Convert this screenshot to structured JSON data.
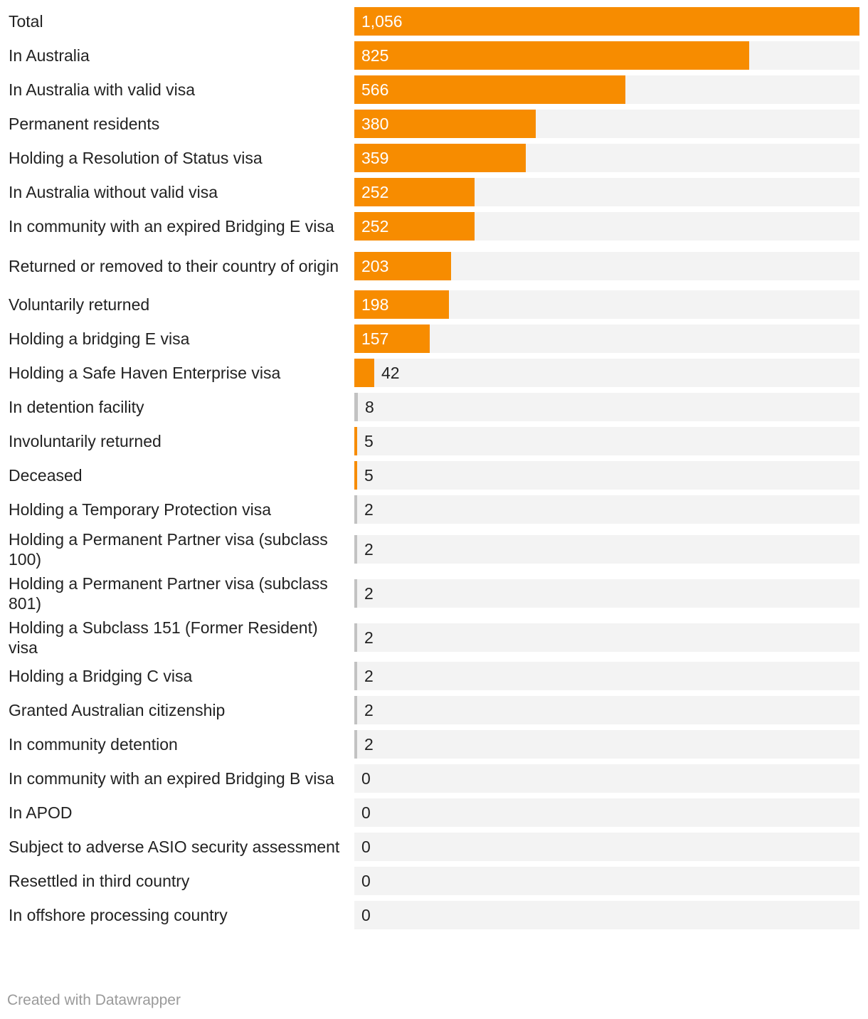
{
  "chart_data": {
    "type": "bar",
    "orientation": "horizontal",
    "max": 1056,
    "colors": {
      "primary": "#f78c00",
      "neutral": "#c2c2c2",
      "track": "#f3f3f3"
    },
    "rows": [
      {
        "label": "Total",
        "value": 1056,
        "display": "1,056",
        "color": "primary"
      },
      {
        "label": "In Australia",
        "value": 825,
        "display": "825",
        "color": "primary"
      },
      {
        "label": "In Australia with valid visa",
        "value": 566,
        "display": "566",
        "color": "primary"
      },
      {
        "label": "Permanent residents",
        "value": 380,
        "display": "380",
        "color": "primary"
      },
      {
        "label": "Holding a Resolution of Status visa",
        "value": 359,
        "display": "359",
        "color": "primary"
      },
      {
        "label": "In Australia without valid visa",
        "value": 252,
        "display": "252",
        "color": "primary"
      },
      {
        "label": "In community with an expired Bridging E visa",
        "value": 252,
        "display": "252",
        "color": "primary"
      },
      {
        "label": "Returned or removed to their country of origin",
        "value": 203,
        "display": "203",
        "color": "primary"
      },
      {
        "label": "Voluntarily returned",
        "value": 198,
        "display": "198",
        "color": "primary"
      },
      {
        "label": "Holding a bridging E visa",
        "value": 157,
        "display": "157",
        "color": "primary"
      },
      {
        "label": "Holding a Safe Haven Enterprise visa",
        "value": 42,
        "display": "42",
        "color": "primary"
      },
      {
        "label": "In detention facility",
        "value": 8,
        "display": "8",
        "color": "neutral"
      },
      {
        "label": "Involuntarily returned",
        "value": 5,
        "display": "5",
        "color": "primary"
      },
      {
        "label": "Deceased",
        "value": 5,
        "display": "5",
        "color": "primary"
      },
      {
        "label": "Holding a Temporary Protection visa",
        "value": 2,
        "display": "2",
        "color": "neutral"
      },
      {
        "label": "Holding a Permanent Partner visa (subclass 100)",
        "value": 2,
        "display": "2",
        "color": "neutral"
      },
      {
        "label": "Holding a Permanent Partner visa (subclass 801)",
        "value": 2,
        "display": "2",
        "color": "neutral"
      },
      {
        "label": "Holding a Subclass 151 (Former Resident) visa",
        "value": 2,
        "display": "2",
        "color": "neutral"
      },
      {
        "label": "Holding a Bridging C visa",
        "value": 2,
        "display": "2",
        "color": "neutral"
      },
      {
        "label": "Granted Australian citizenship",
        "value": 2,
        "display": "2",
        "color": "neutral"
      },
      {
        "label": "In community detention",
        "value": 2,
        "display": "2",
        "color": "neutral"
      },
      {
        "label": "In community with an expired Bridging B visa",
        "value": 0,
        "display": "0",
        "color": "neutral"
      },
      {
        "label": "In APOD",
        "value": 0,
        "display": "0",
        "color": "neutral"
      },
      {
        "label": "Subject to adverse ASIO security assessment",
        "value": 0,
        "display": "0",
        "color": "neutral"
      },
      {
        "label": "Resettled in third country",
        "value": 0,
        "display": "0",
        "color": "neutral"
      },
      {
        "label": "In offshore processing country",
        "value": 0,
        "display": "0",
        "color": "neutral"
      }
    ]
  },
  "footer": {
    "credit": "Created with Datawrapper"
  }
}
